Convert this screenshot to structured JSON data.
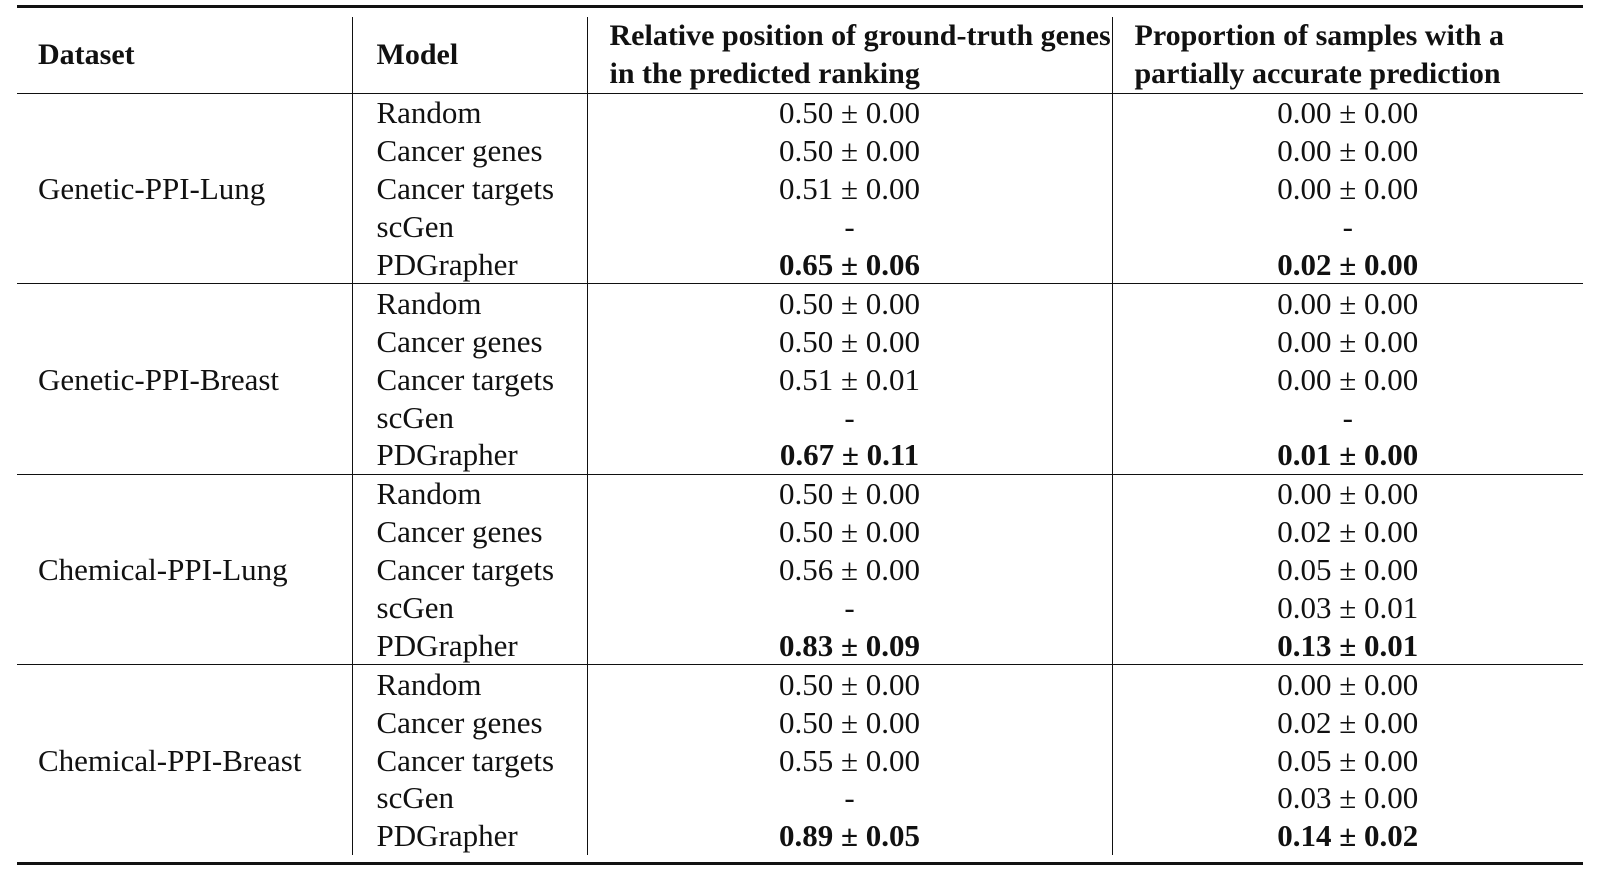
{
  "headers": {
    "dataset": "Dataset",
    "model": "Model",
    "relative_position": "Relative position of ground-truth genes in the predicted ranking",
    "proportion": "Proportion of samples with a partially accurate prediction"
  },
  "groups": [
    {
      "dataset": "Genetic-PPI-Lung",
      "rows": [
        {
          "model": "Random",
          "rel": "0.50 ± 0.00",
          "prop": "0.00 ± 0.00",
          "rel_bold": false,
          "prop_bold": false
        },
        {
          "model": "Cancer genes",
          "rel": "0.50 ± 0.00",
          "prop": "0.00 ± 0.00",
          "rel_bold": false,
          "prop_bold": false
        },
        {
          "model": "Cancer targets",
          "rel": "0.51 ± 0.00",
          "prop": "0.00 ± 0.00",
          "rel_bold": false,
          "prop_bold": false
        },
        {
          "model": "scGen",
          "rel": "-",
          "prop": "-",
          "rel_bold": false,
          "prop_bold": false
        },
        {
          "model": "PDGrapher",
          "rel": "0.65 ± 0.06",
          "prop": "0.02 ± 0.00",
          "rel_bold": true,
          "prop_bold": true
        }
      ]
    },
    {
      "dataset": "Genetic-PPI-Breast",
      "rows": [
        {
          "model": "Random",
          "rel": "0.50 ± 0.00",
          "prop": "0.00 ± 0.00",
          "rel_bold": false,
          "prop_bold": false
        },
        {
          "model": "Cancer genes",
          "rel": "0.50 ± 0.00",
          "prop": "0.00 ± 0.00",
          "rel_bold": false,
          "prop_bold": false
        },
        {
          "model": "Cancer targets",
          "rel": "0.51 ± 0.01",
          "prop": "0.00 ± 0.00",
          "rel_bold": false,
          "prop_bold": false
        },
        {
          "model": "scGen",
          "rel": "-",
          "prop": "-",
          "rel_bold": false,
          "prop_bold": false
        },
        {
          "model": "PDGrapher",
          "rel": "0.67 ± 0.11",
          "prop": "0.01 ± 0.00",
          "rel_bold": true,
          "prop_bold": true
        }
      ]
    },
    {
      "dataset": "Chemical-PPI-Lung",
      "rows": [
        {
          "model": "Random",
          "rel": "0.50 ± 0.00",
          "prop": "0.00 ± 0.00",
          "rel_bold": false,
          "prop_bold": false
        },
        {
          "model": "Cancer genes",
          "rel": "0.50 ± 0.00",
          "prop": "0.02 ± 0.00",
          "rel_bold": false,
          "prop_bold": false
        },
        {
          "model": "Cancer targets",
          "rel": "0.56 ± 0.00",
          "prop": "0.05 ± 0.00",
          "rel_bold": false,
          "prop_bold": false
        },
        {
          "model": "scGen",
          "rel": "-",
          "prop": "0.03 ± 0.01",
          "rel_bold": false,
          "prop_bold": false
        },
        {
          "model": "PDGrapher",
          "rel": "0.83 ± 0.09",
          "prop": "0.13 ± 0.01",
          "rel_bold": true,
          "prop_bold": true
        }
      ]
    },
    {
      "dataset": "Chemical-PPI-Breast",
      "rows": [
        {
          "model": "Random",
          "rel": "0.50 ± 0.00",
          "prop": "0.00 ± 0.00",
          "rel_bold": false,
          "prop_bold": false
        },
        {
          "model": "Cancer genes",
          "rel": "0.50 ± 0.00",
          "prop": "0.02 ± 0.00",
          "rel_bold": false,
          "prop_bold": false
        },
        {
          "model": "Cancer targets",
          "rel": "0.55 ± 0.00",
          "prop": "0.05 ± 0.00",
          "rel_bold": false,
          "prop_bold": false
        },
        {
          "model": "scGen",
          "rel": "-",
          "prop": "0.03 ± 0.00",
          "rel_bold": false,
          "prop_bold": false
        },
        {
          "model": "PDGrapher",
          "rel": "0.89 ± 0.05",
          "prop": "0.14 ± 0.02",
          "rel_bold": true,
          "prop_bold": true
        }
      ]
    }
  ]
}
